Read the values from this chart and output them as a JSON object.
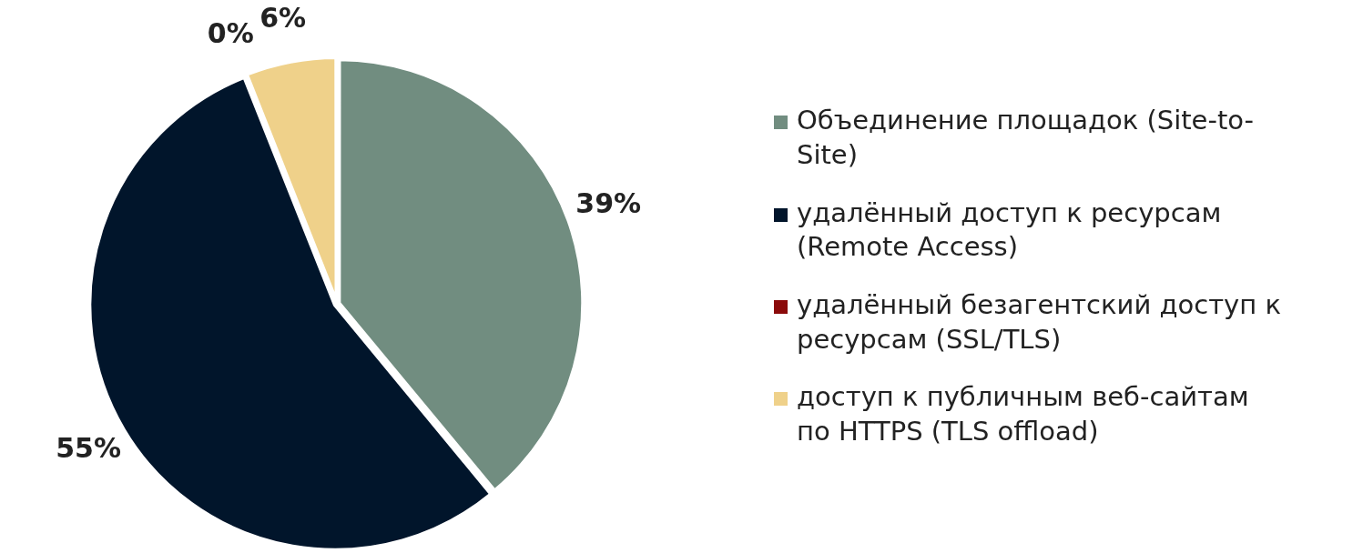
{
  "chart_data": {
    "type": "pie",
    "categories": [
      "Объединение площадок (Site-to-Site)",
      "удалённый доступ к ресурсам (Remote Access)",
      "удалённый безагентский доступ к ресурсам (SSL/TLS)",
      "доступ к публичным веб-сайтам по HTTPS (TLS offload)"
    ],
    "values": [
      39,
      55,
      0,
      6
    ],
    "colors": [
      "#718d80",
      "#01152b",
      "#8b0a0a",
      "#efd18a"
    ],
    "value_labels": [
      "39%",
      "55%",
      "0%",
      "6%"
    ],
    "legend": "right"
  }
}
